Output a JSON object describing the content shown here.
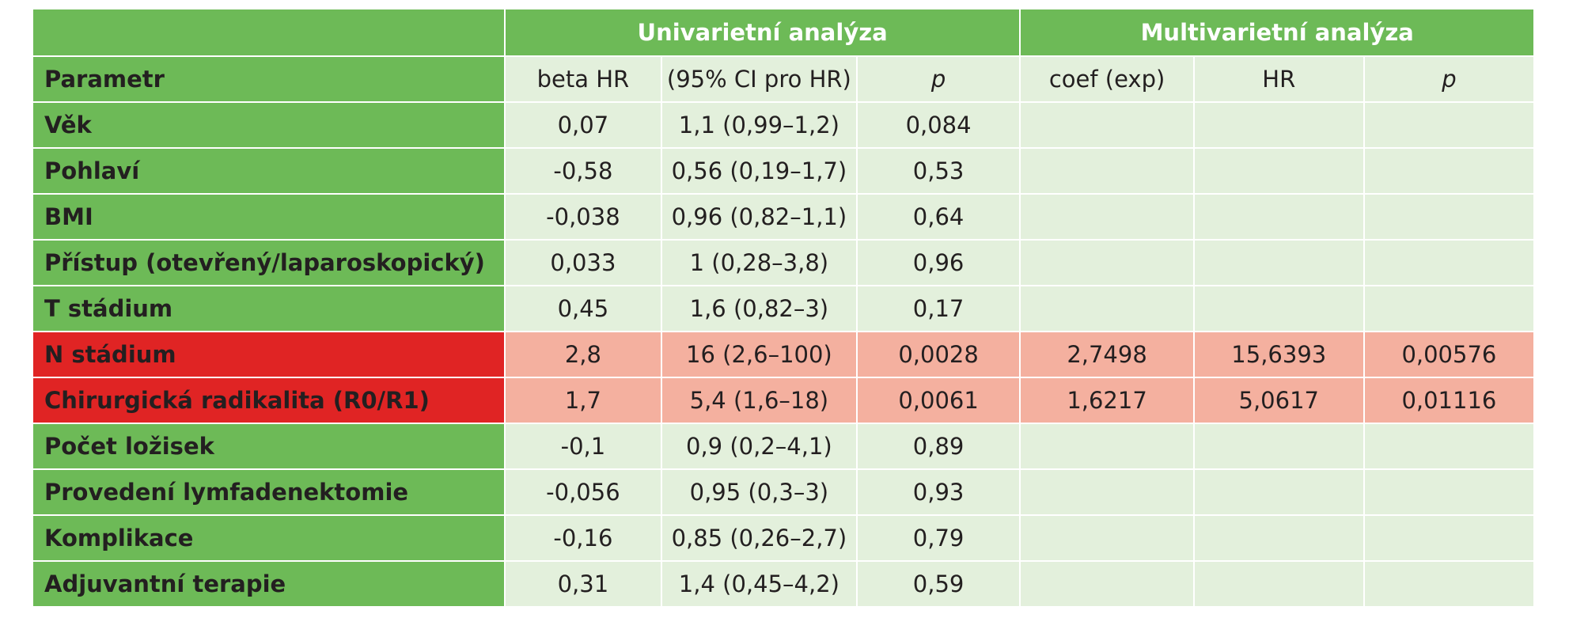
{
  "table": {
    "group_headers": {
      "univariate": "Univarietní analýza",
      "multivariate": "Multivarietní analýza"
    },
    "columns": {
      "parameter": "Parametr",
      "beta_hr": "beta HR",
      "ci": "(95% CI pro HR)",
      "p_uni": "p",
      "coef": "coef (exp)",
      "hr": "HR",
      "p_multi": "p"
    },
    "rows": [
      {
        "param": "Věk",
        "beta": "0,07",
        "ci": "1,1 (0,99–1,2)",
        "p": "0,084",
        "coef": "",
        "hr": "",
        "pm": ""
      },
      {
        "param": "Pohlaví",
        "beta": "-0,58",
        "ci": "0,56 (0,19–1,7)",
        "p": "0,53",
        "coef": "",
        "hr": "",
        "pm": ""
      },
      {
        "param": "BMI",
        "beta": "-0,038",
        "ci": "0,96 (0,82–1,1)",
        "p": "0,64",
        "coef": "",
        "hr": "",
        "pm": ""
      },
      {
        "param": "Přístup (otevřený/laparoskopický)",
        "beta": "0,033",
        "ci": "1 (0,28–3,8)",
        "p": "0,96",
        "coef": "",
        "hr": "",
        "pm": ""
      },
      {
        "param": "T stádium",
        "beta": "0,45",
        "ci": "1,6 (0,82–3)",
        "p": "0,17",
        "coef": "",
        "hr": "",
        "pm": ""
      },
      {
        "param": "N stádium",
        "beta": "2,8",
        "ci": "16 (2,6–100)",
        "p": "0,0028",
        "coef": "2,7498",
        "hr": "15,6393",
        "pm": "0,00576"
      },
      {
        "param": "Chirurgická radikalita (R0/R1)",
        "beta": "1,7",
        "ci": "5,4 (1,6–18)",
        "p": "0,0061",
        "coef": "1,6217",
        "hr": "5,0617",
        "pm": "0,01116"
      },
      {
        "param": "Počet ložisek",
        "beta": "-0,1",
        "ci": "0,9 (0,2–4,1)",
        "p": "0,89",
        "coef": "",
        "hr": "",
        "pm": ""
      },
      {
        "param": "Provedení lymfadenektomie",
        "beta": "-0,056",
        "ci": "0,95 (0,3–3)",
        "p": "0,93",
        "coef": "",
        "hr": "",
        "pm": ""
      },
      {
        "param": "Komplikace",
        "beta": "-0,16",
        "ci": "0,85 (0,26–2,7)",
        "p": "0,79",
        "coef": "",
        "hr": "",
        "pm": ""
      },
      {
        "param": "Adjuvantní terapie",
        "beta": "0,31",
        "ci": "1,4 (0,45–4,2)",
        "p": "0,59",
        "coef": "",
        "hr": "",
        "pm": ""
      }
    ]
  },
  "colors": {
    "header_green": "#6dba57",
    "cell_light_green": "#e3f0dc",
    "highlight_red": "#e02424",
    "highlight_salmon": "#f4b09f"
  }
}
